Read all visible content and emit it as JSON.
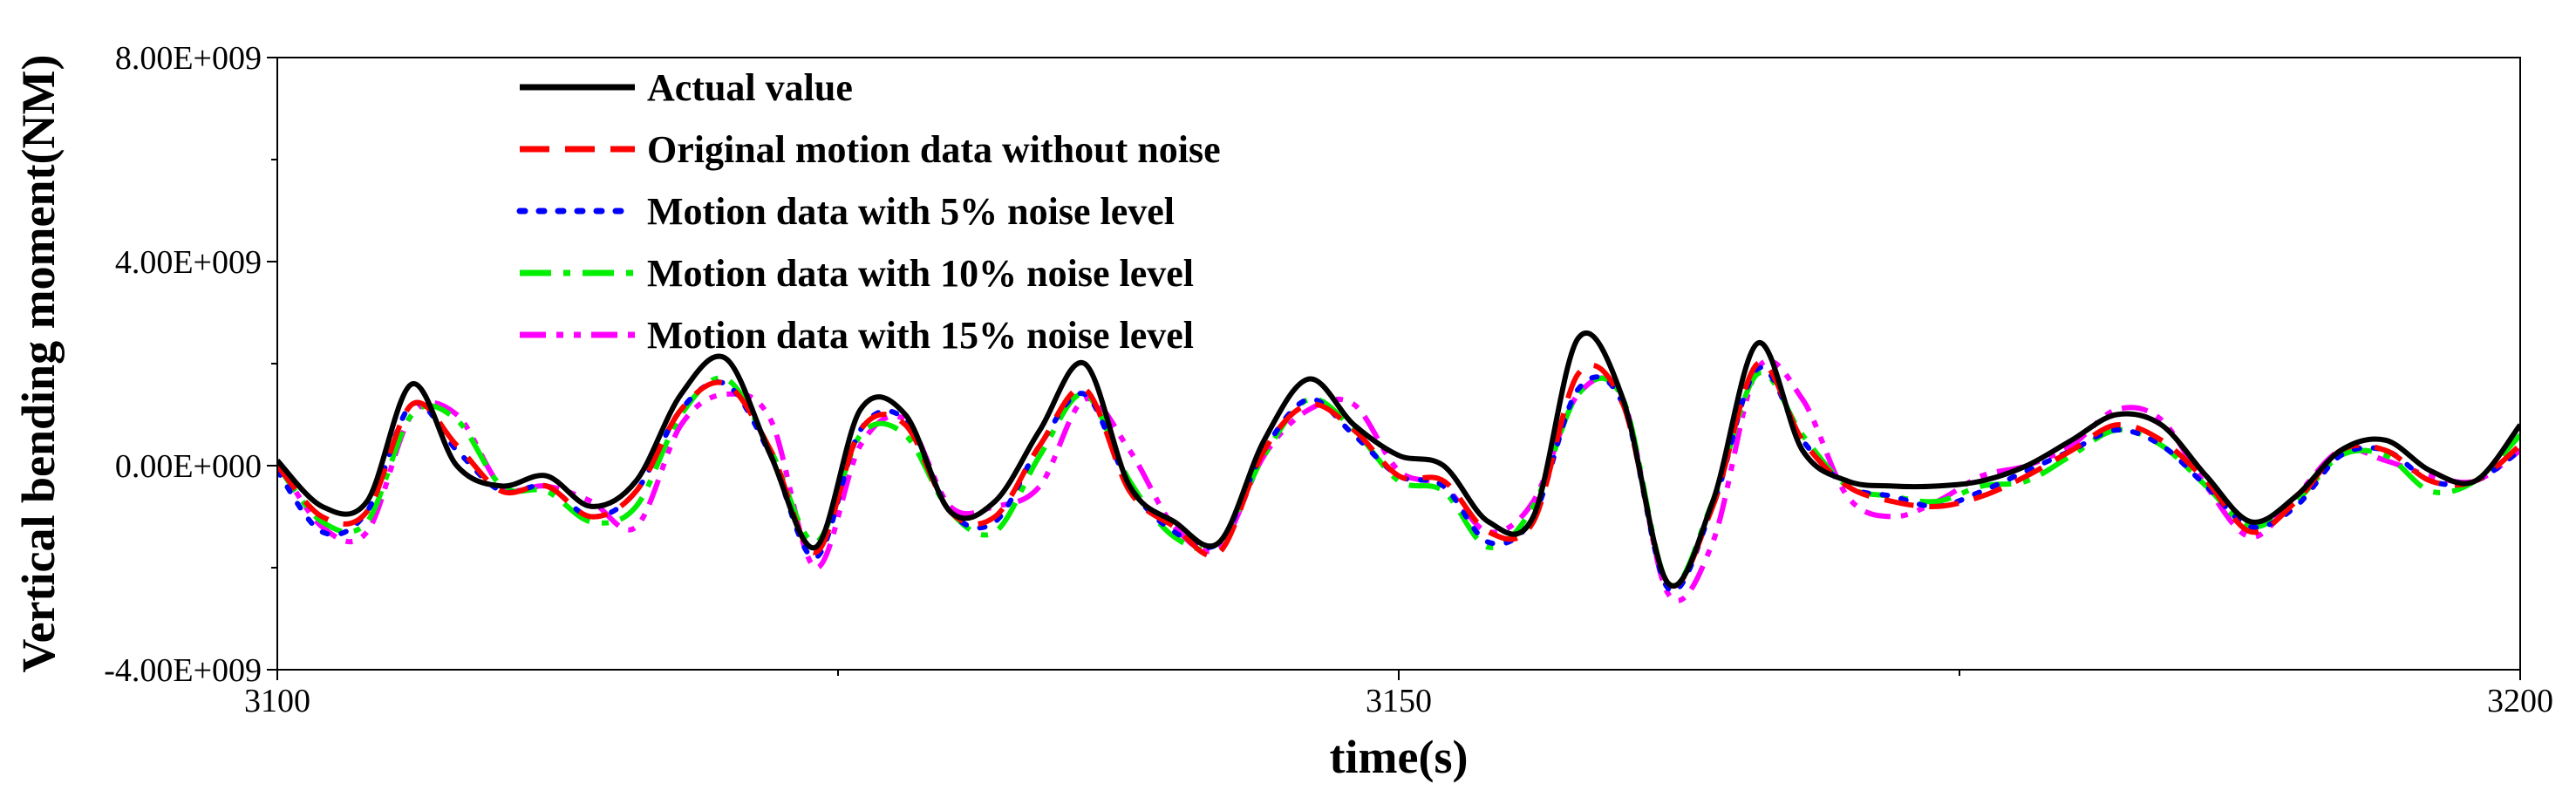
{
  "chart_data": {
    "type": "line",
    "title": "",
    "xlabel": "time(s)",
    "ylabel": "Vertical bending moment(NM)",
    "xlim": [
      3100,
      3200
    ],
    "ylim": [
      -4000000000,
      8000000000
    ],
    "x_ticks": [
      3100,
      3150,
      3200
    ],
    "x_tick_labels": [
      "3100",
      "3150",
      "3200"
    ],
    "y_ticks": [
      -4000000000,
      0,
      4000000000,
      8000000000
    ],
    "y_tick_labels": [
      "-4.00E+009",
      "0.00E+000",
      "4.00E+009",
      "8.00E+009"
    ],
    "grid": false,
    "legend_position": "top-left",
    "series": [
      {
        "name": "Actual value",
        "color": "#000000",
        "style": "solid",
        "x": [
          3100,
          3102,
          3104,
          3106,
          3108,
          3110,
          3112,
          3114,
          3116,
          3118,
          3120,
          3122,
          3124,
          3126,
          3128,
          3130,
          3132,
          3134,
          3136,
          3138,
          3140,
          3142,
          3144,
          3146,
          3148,
          3150,
          3152,
          3154,
          3156,
          3158,
          3160,
          3162,
          3164,
          3166,
          3168,
          3170,
          3172,
          3174,
          3176,
          3178,
          3180,
          3182,
          3184,
          3186,
          3188,
          3190,
          3192,
          3194,
          3196,
          3198,
          3200
        ],
        "values": [
          100000000,
          -800000000,
          -700000000,
          1600000000,
          0,
          -400000000,
          -200000000,
          -800000000,
          -300000000,
          1400000000,
          2100000000,
          200000000,
          -1600000000,
          1100000000,
          1000000000,
          -900000000,
          -700000000,
          700000000,
          2000000000,
          -400000000,
          -1100000000,
          -1500000000,
          500000000,
          1700000000,
          800000000,
          200000000,
          0,
          -1100000000,
          -1000000000,
          2500000000,
          1300000000,
          -2300000000,
          -700000000,
          2400000000,
          300000000,
          -300000000,
          -400000000,
          -400000000,
          -300000000,
          0,
          500000000,
          1000000000,
          800000000,
          -200000000,
          -1100000000,
          -600000000,
          300000000,
          500000000,
          -100000000,
          -300000000,
          800000000
        ]
      },
      {
        "name": "Original motion data without noise",
        "color": "#ff0000",
        "style": "dashed",
        "x": [
          3100,
          3102,
          3104,
          3106,
          3108,
          3110,
          3112,
          3114,
          3116,
          3118,
          3120,
          3122,
          3124,
          3126,
          3128,
          3130,
          3132,
          3134,
          3136,
          3138,
          3140,
          3142,
          3144,
          3146,
          3148,
          3150,
          3152,
          3154,
          3156,
          3158,
          3160,
          3162,
          3164,
          3166,
          3168,
          3170,
          3172,
          3174,
          3176,
          3178,
          3180,
          3182,
          3184,
          3186,
          3188,
          3190,
          3192,
          3194,
          3196,
          3198,
          3200
        ],
        "values": [
          0,
          -1000000000,
          -900000000,
          1200000000,
          400000000,
          -500000000,
          -400000000,
          -1000000000,
          -500000000,
          1100000000,
          1600000000,
          300000000,
          -1700000000,
          700000000,
          800000000,
          -900000000,
          -1000000000,
          400000000,
          1500000000,
          -500000000,
          -1200000000,
          -1700000000,
          300000000,
          1200000000,
          700000000,
          -200000000,
          -300000000,
          -1300000000,
          -1100000000,
          1800000000,
          1200000000,
          -2300000000,
          -800000000,
          2000000000,
          500000000,
          -400000000,
          -700000000,
          -800000000,
          -600000000,
          -200000000,
          300000000,
          800000000,
          500000000,
          -300000000,
          -1300000000,
          -700000000,
          300000000,
          300000000,
          -300000000,
          -300000000,
          400000000
        ]
      },
      {
        "name": "Motion data with 5% noise level",
        "color": "#0000ff",
        "style": "dotted",
        "x": [
          3100,
          3102,
          3104,
          3106,
          3108,
          3110,
          3112,
          3114,
          3116,
          3118,
          3120,
          3122,
          3124,
          3126,
          3128,
          3130,
          3132,
          3134,
          3136,
          3138,
          3140,
          3142,
          3144,
          3146,
          3148,
          3150,
          3152,
          3154,
          3156,
          3158,
          3160,
          3162,
          3164,
          3166,
          3168,
          3170,
          3172,
          3174,
          3176,
          3178,
          3180,
          3182,
          3184,
          3186,
          3188,
          3190,
          3192,
          3194,
          3196,
          3198,
          3200
        ],
        "values": [
          -100000000,
          -1300000000,
          -900000000,
          1200000000,
          300000000,
          -500000000,
          -400000000,
          -1000000000,
          -500000000,
          1100000000,
          1600000000,
          200000000,
          -1800000000,
          700000000,
          900000000,
          -900000000,
          -1100000000,
          400000000,
          1400000000,
          -400000000,
          -1300000000,
          -1500000000,
          300000000,
          1300000000,
          600000000,
          -200000000,
          -400000000,
          -1500000000,
          -1000000000,
          1500000000,
          1200000000,
          -2400000000,
          -800000000,
          1900000000,
          500000000,
          -400000000,
          -600000000,
          -800000000,
          -500000000,
          -100000000,
          300000000,
          700000000,
          400000000,
          -400000000,
          -1200000000,
          -800000000,
          200000000,
          300000000,
          -300000000,
          -300000000,
          300000000
        ]
      },
      {
        "name": "Motion data with 10% noise level",
        "color": "#00ee00",
        "style": "dashdot",
        "x": [
          3100,
          3102,
          3104,
          3106,
          3108,
          3110,
          3112,
          3114,
          3116,
          3118,
          3120,
          3122,
          3124,
          3126,
          3128,
          3130,
          3132,
          3134,
          3136,
          3138,
          3140,
          3142,
          3144,
          3146,
          3148,
          3150,
          3152,
          3154,
          3156,
          3158,
          3160,
          3162,
          3164,
          3166,
          3168,
          3170,
          3172,
          3174,
          3176,
          3178,
          3180,
          3182,
          3184,
          3186,
          3188,
          3190,
          3192,
          3194,
          3196,
          3198,
          3200
        ],
        "values": [
          0,
          -1100000000,
          -1100000000,
          1000000000,
          900000000,
          -400000000,
          -500000000,
          -1100000000,
          -800000000,
          1000000000,
          1700000000,
          300000000,
          -1500000000,
          600000000,
          600000000,
          -900000000,
          -1300000000,
          200000000,
          1400000000,
          -300000000,
          -1400000000,
          -1500000000,
          200000000,
          1300000000,
          700000000,
          -300000000,
          -500000000,
          -1600000000,
          -800000000,
          1400000000,
          1300000000,
          -2300000000,
          -700000000,
          1800000000,
          600000000,
          -400000000,
          -600000000,
          -700000000,
          -400000000,
          -300000000,
          200000000,
          700000000,
          400000000,
          -400000000,
          -1200000000,
          -700000000,
          200000000,
          200000000,
          -500000000,
          -300000000,
          600000000
        ]
      },
      {
        "name": "Motion data with 15% noise level",
        "color": "#ff00ff",
        "style": "dashdotdot",
        "x": [
          3100,
          3102,
          3104,
          3106,
          3108,
          3110,
          3112,
          3114,
          3116,
          3118,
          3120,
          3122,
          3124,
          3126,
          3128,
          3130,
          3132,
          3134,
          3136,
          3138,
          3140,
          3142,
          3144,
          3146,
          3148,
          3150,
          3152,
          3154,
          3156,
          3158,
          3160,
          3162,
          3164,
          3166,
          3168,
          3170,
          3172,
          3174,
          3176,
          3178,
          3180,
          3182,
          3184,
          3186,
          3188,
          3190,
          3192,
          3194,
          3196,
          3198,
          3200
        ],
        "values": [
          100000000,
          -1200000000,
          -1300000000,
          1000000000,
          1000000000,
          -400000000,
          -400000000,
          -700000000,
          -1200000000,
          800000000,
          1400000000,
          900000000,
          -2000000000,
          400000000,
          900000000,
          -800000000,
          -800000000,
          -400000000,
          1300000000,
          300000000,
          -1200000000,
          -1600000000,
          200000000,
          1100000000,
          1200000000,
          -100000000,
          -400000000,
          -1300000000,
          -700000000,
          1400000000,
          1300000000,
          -2500000000,
          -1500000000,
          1900000000,
          1300000000,
          -600000000,
          -1000000000,
          -700000000,
          -200000000,
          0,
          400000000,
          1100000000,
          900000000,
          -400000000,
          -1400000000,
          -600000000,
          300000000,
          100000000,
          -200000000,
          -300000000,
          300000000
        ]
      }
    ]
  }
}
